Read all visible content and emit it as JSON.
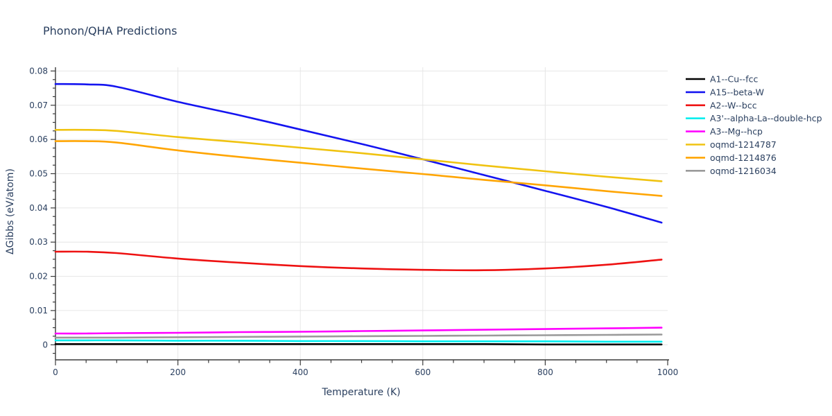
{
  "chart_data": {
    "type": "line",
    "title": "Phonon/QHA Predictions",
    "xlabel": "Temperature (K)",
    "ylabel": "ΔGibbs (eV/atom)",
    "xlim": [
      0,
      1000
    ],
    "ylim": [
      -0.0044,
      0.0811
    ],
    "grid": true,
    "legend_position": "right",
    "x_ticks": [
      0,
      200,
      400,
      600,
      800,
      1000
    ],
    "x_tick_labels": [
      "0",
      "200",
      "400",
      "600",
      "800",
      "1000"
    ],
    "x_minor_step": 50,
    "y_ticks": [
      0,
      0.01,
      0.02,
      0.03,
      0.04,
      0.05,
      0.06,
      0.07,
      0.08
    ],
    "y_tick_labels": [
      "0",
      "0.01",
      "0.02",
      "0.03",
      "0.04",
      "0.05",
      "0.06",
      "0.07",
      "0.08"
    ],
    "y_minor_step": 0.0025,
    "x_gridlines": [
      200,
      400,
      600,
      800
    ],
    "x": [
      0,
      50,
      100,
      200,
      300,
      400,
      500,
      600,
      700,
      800,
      900,
      990
    ],
    "series": [
      {
        "name": "A1--Cu--fcc",
        "color": "#000000",
        "values": [
          0.0002,
          0.0002,
          0.0002,
          0.0002,
          0.0002,
          0.0002,
          0.0002,
          0.0002,
          0.0002,
          0.0001,
          0.0001,
          0.0001
        ]
      },
      {
        "name": "A15--beta-W",
        "color": "#1414f0",
        "values": [
          0.0762,
          0.0761,
          0.0754,
          0.071,
          0.0671,
          0.0629,
          0.0587,
          0.0542,
          0.0496,
          0.045,
          0.0403,
          0.0357
        ]
      },
      {
        "name": "A2--W--bcc",
        "color": "#ee1111",
        "values": [
          0.0272,
          0.0272,
          0.0268,
          0.0252,
          0.024,
          0.023,
          0.0223,
          0.0219,
          0.0218,
          0.0223,
          0.0234,
          0.0249
        ]
      },
      {
        "name": "A3'--alpha-La--double-hcp",
        "color": "#00eeee",
        "values": [
          0.0013,
          0.0013,
          0.0013,
          0.0012,
          0.0012,
          0.0011,
          0.0011,
          0.001,
          0.001,
          0.001,
          0.0009,
          0.0009
        ]
      },
      {
        "name": "A3--Mg--hcp",
        "color": "#ff00ff",
        "values": [
          0.0033,
          0.0033,
          0.0034,
          0.0035,
          0.0037,
          0.0038,
          0.004,
          0.0042,
          0.0044,
          0.0046,
          0.0048,
          0.005
        ]
      },
      {
        "name": "oqmd-1214787",
        "color": "#f0c311",
        "values": [
          0.0628,
          0.0628,
          0.0625,
          0.0607,
          0.0592,
          0.0576,
          0.056,
          0.0542,
          0.0524,
          0.0507,
          0.0491,
          0.0478
        ]
      },
      {
        "name": "oqmd-1214876",
        "color": "#ffa502",
        "values": [
          0.0595,
          0.0595,
          0.0591,
          0.0568,
          0.0549,
          0.0532,
          0.0515,
          0.0499,
          0.0482,
          0.0466,
          0.0449,
          0.0435
        ]
      },
      {
        "name": "oqmd-1216034",
        "color": "#9a9a9a",
        "values": [
          0.0021,
          0.0021,
          0.0021,
          0.0022,
          0.0023,
          0.0024,
          0.0025,
          0.0026,
          0.0027,
          0.0028,
          0.0029,
          0.003
        ]
      }
    ],
    "colors": {
      "text": "#2a3f5f",
      "grid": "#e6e6e6",
      "axis": "#3a3a3a",
      "background": "#ffffff"
    }
  }
}
